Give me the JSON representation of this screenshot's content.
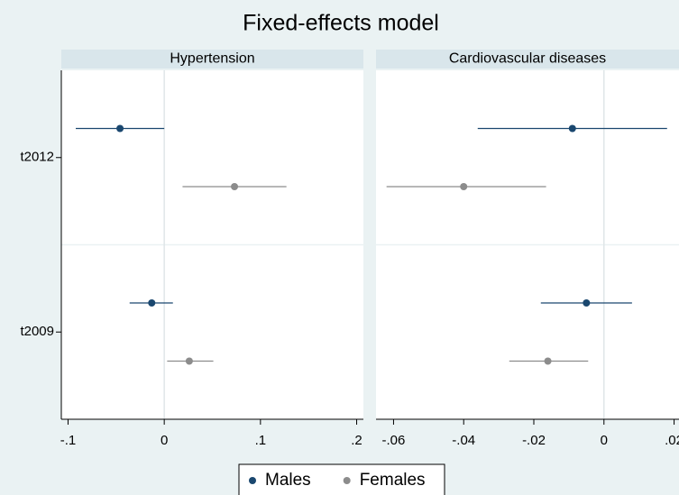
{
  "title": "Fixed-effects model",
  "chart_data": [
    {
      "type": "coefplot",
      "title": "Hypertension",
      "categories": [
        "t2012",
        "t2009"
      ],
      "series": [
        {
          "name": "Males",
          "color": "#1a476f",
          "values": [
            -0.046,
            -0.013
          ],
          "lower": [
            -0.092,
            -0.036
          ],
          "upper": [
            0.0,
            0.009
          ]
        },
        {
          "name": "Females",
          "color": "#8c8c8c",
          "values": [
            0.073,
            0.026
          ],
          "lower": [
            0.019,
            0.003
          ],
          "upper": [
            0.127,
            0.051
          ]
        }
      ],
      "xlim": [
        -0.107,
        0.207
      ],
      "xticks": [
        {
          "value": -0.1,
          "label": "-.1"
        },
        0,
        {
          "value": 0.1,
          "label": ".1"
        },
        {
          "value": 0.2,
          "label": ".2"
        }
      ]
    },
    {
      "type": "coefplot",
      "title": "Cardiovascular diseases",
      "categories": [
        "t2012",
        "t2009"
      ],
      "series": [
        {
          "name": "Males",
          "color": "#1a476f",
          "values": [
            -0.009,
            -0.005
          ],
          "lower": [
            -0.036,
            -0.018
          ],
          "upper": [
            0.018,
            0.008
          ]
        },
        {
          "name": "Females",
          "color": "#8c8c8c",
          "values": [
            -0.04,
            -0.016
          ],
          "lower": [
            -0.062,
            -0.027
          ],
          "upper": [
            -0.0165,
            -0.0045
          ]
        }
      ],
      "xlim": [
        -0.065,
        0.0214
      ],
      "xticks": [
        {
          "value": -0.06,
          "label": "-.06"
        },
        {
          "value": -0.04,
          "label": "-.04"
        },
        {
          "value": -0.02,
          "label": "-.02"
        },
        0,
        {
          "value": 0.02,
          "label": ".02"
        }
      ]
    }
  ]
}
